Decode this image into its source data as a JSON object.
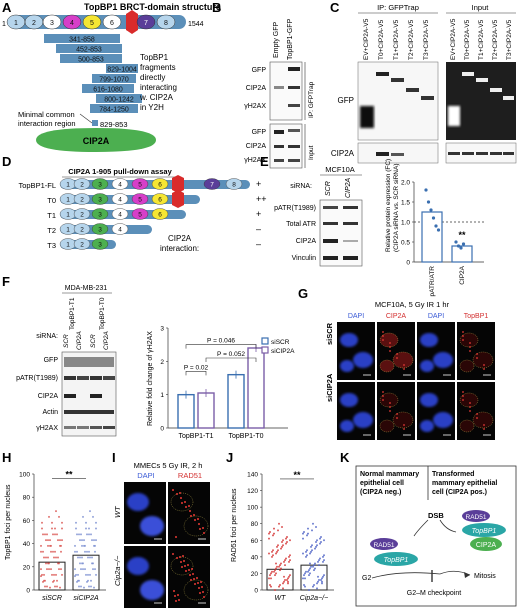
{
  "panels": {
    "A": {
      "letter": "A",
      "title": "TopBP1 BRCT-domain structure",
      "start": "1",
      "end": "1544",
      "domains": [
        "1",
        "2",
        "3",
        "4",
        "5",
        "6",
        "7",
        "8"
      ],
      "fragments": [
        "341-858",
        "452-853",
        "500-853",
        "829-1004",
        "799-1070",
        "616-1080",
        "800-1242",
        "784-1250"
      ],
      "note": "TopBP1 fragments directly interacting w. CIP2A in Y2H",
      "min_label": "Minimal common interaction region",
      "min_range": "829-853",
      "cip2a": "CIP2A"
    },
    "B": {
      "letter": "B",
      "cols": [
        "Empty GFP",
        "TopBP1-GFP"
      ],
      "ip_rows": [
        "GFP",
        "CIP2A",
        "γH2AX"
      ],
      "input_rows": [
        "GFP",
        "CIP2A",
        "γH2AX"
      ],
      "ip_label": "IP: GFPTrap",
      "input_label": "Input"
    },
    "C": {
      "letter": "C",
      "ip_header": "IP: GFPTrap",
      "input_header": "Input",
      "lanes": [
        "EV+CIP2A-V5",
        "T0+CIP2A-V5",
        "T1+CIP2A-V5",
        "T2+CIP2A-V5",
        "T3+CIP2A-V5"
      ],
      "row_gfp": "GFP",
      "row_cip2a": "CIP2A"
    },
    "D": {
      "letter": "D",
      "title": "CIP2A 1-905 pull-down assay",
      "constructs": [
        {
          "name": "TopBP1-FL",
          "result": "+"
        },
        {
          "name": "T0",
          "result": "++"
        },
        {
          "name": "T1",
          "result": "+"
        },
        {
          "name": "T2",
          "result": "–"
        },
        {
          "name": "T3",
          "result": "–"
        }
      ],
      "interaction_label": "CIP2A interaction:"
    },
    "E": {
      "letter": "E",
      "cell_line": "MCF10A",
      "sirna_label": "siRNA:",
      "cols": [
        "SCR",
        "CIP2A"
      ],
      "rows": [
        "pATR(T1989)",
        "Total ATR",
        "CIP2A",
        "Vinculin"
      ],
      "chart_ylabel": "Relative protein expression (FC) (CIP2A siRNA vs. SCR siRNA)",
      "yticks": [
        "0",
        "0.5",
        "1.0",
        "1.5",
        "2.0"
      ],
      "xcats": [
        "pATR/ATR",
        "CIP2A"
      ],
      "sig": "**"
    },
    "F": {
      "letter": "F",
      "cell_line": "MDA-MB-231",
      "groups": [
        "TopBP1-T1",
        "TopBP1-T0"
      ],
      "sirna_label": "siRNA:",
      "lanes": [
        "SCR",
        "CIP2A",
        "SCR",
        "CIP2A"
      ],
      "rows": [
        "GFP",
        "pATR(T1989)",
        "CIP2A",
        "Actin",
        "γH2AX"
      ],
      "chart_ylabel": "Relative fold change of γH2AX",
      "yticks": [
        "0",
        "1",
        "2",
        "3"
      ],
      "xcats": [
        "TopBP1-T1",
        "TopBP1-T0"
      ],
      "legend": [
        "siSCR",
        "siCIP2A"
      ],
      "pvals": [
        "P = 0.02",
        "P = 0.052",
        "P = 0.046"
      ]
    },
    "G": {
      "letter": "G",
      "title": "MCF10A, 5 Gy IR 1 hr",
      "cols": [
        "DAPI",
        "CIP2A",
        "DAPI",
        "TopBP1"
      ],
      "rows": [
        "siSCR",
        "siCIP2A"
      ]
    },
    "H": {
      "letter": "H",
      "ylabel": "TopBP1 foci per nucleus",
      "yticks": [
        "0",
        "20",
        "40",
        "60",
        "80",
        "100"
      ],
      "xcats": [
        "siSCR",
        "siCIP2A"
      ],
      "sig": "**"
    },
    "I": {
      "letter": "I",
      "title": "MMECs 5 Gy IR, 2 h",
      "cols": [
        "DAPI",
        "RAD51"
      ],
      "rows": [
        "WT",
        "Cip2a−/−"
      ]
    },
    "J": {
      "letter": "J",
      "ylabel": "RAD51 foci per nucleus",
      "yticks": [
        "0",
        "20",
        "40",
        "60",
        "80",
        "100",
        "120",
        "140"
      ],
      "xcats": [
        "WT",
        "Cip2a−/−"
      ],
      "sig": "**"
    },
    "K": {
      "letter": "K",
      "left_title": "Normal mammary epithelial cell (CIP2A neg.)",
      "right_title": "Transformed mammary epithelial cell (CIP2A pos.)",
      "rad51": "RAD51",
      "topbp1": "TopBP1",
      "cip2a": "CIP2A",
      "dsb": "DSB",
      "g2": "G2",
      "mitosis": "Mitosis",
      "checkpoint": "G2–M checkpoint"
    }
  },
  "colors": {
    "blue_bar": "#5b8fb9",
    "green": "#4caf50",
    "yellow": "#f5e633",
    "magenta": "#d63fc9",
    "red": "#d92b2b",
    "purple": "#5a3e99",
    "lightblue": "#b6d5ec",
    "teal": "#2aa6a6",
    "sig_red": "#d32f2f",
    "bar_blue": "#3a6fb0",
    "bar_purple": "#7b5ea7"
  },
  "chart_data": [
    {
      "type": "bar",
      "panel": "E",
      "categories": [
        "pATR/ATR",
        "CIP2A"
      ],
      "values": [
        1.25,
        0.4
      ],
      "ylim": [
        0,
        2.0
      ],
      "reference_line": 1.0
    },
    {
      "type": "bar",
      "panel": "F",
      "categories": [
        "TopBP1-T1",
        "TopBP1-T0"
      ],
      "series": [
        {
          "name": "siSCR",
          "values": [
            1.0,
            1.6
          ]
        },
        {
          "name": "siCIP2A",
          "values": [
            1.05,
            2.4
          ]
        }
      ],
      "ylim": [
        0,
        3
      ]
    },
    {
      "type": "scatter",
      "panel": "H",
      "categories": [
        "siSCR",
        "siCIP2A"
      ],
      "means": [
        24,
        30
      ],
      "ylim": [
        0,
        100
      ]
    },
    {
      "type": "scatter",
      "panel": "J",
      "categories": [
        "WT",
        "Cip2a−/−"
      ],
      "means": [
        25,
        30
      ],
      "ylim": [
        0,
        140
      ]
    }
  ]
}
